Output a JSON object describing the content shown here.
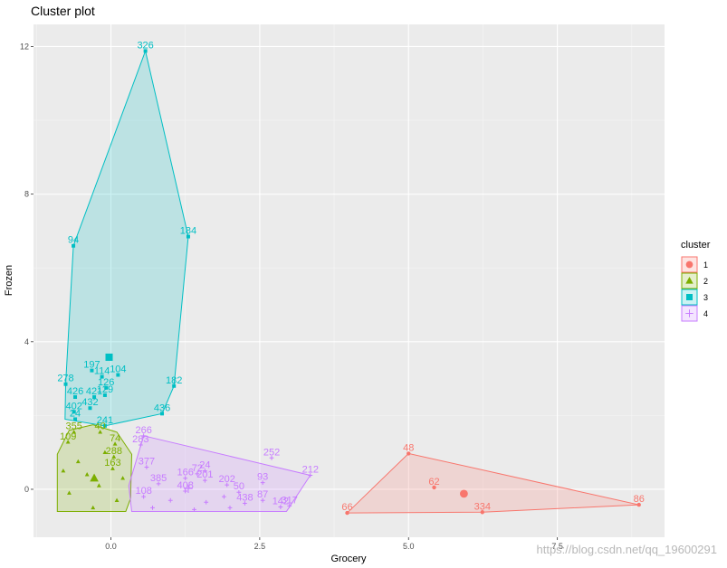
{
  "chart_data": {
    "type": "scatter",
    "title": "Cluster plot",
    "xlabel": "Grocery",
    "ylabel": "Frozen",
    "xlim": [
      -1.3,
      9.3
    ],
    "ylim": [
      -1.3,
      12.6
    ],
    "x_ticks": [
      {
        "value": 0.0,
        "label": "0.0"
      },
      {
        "value": 2.5,
        "label": "2.5"
      },
      {
        "value": 5.0,
        "label": "5.0"
      },
      {
        "value": 7.5,
        "label": "7.5"
      }
    ],
    "y_ticks": [
      {
        "value": 0,
        "label": "0"
      },
      {
        "value": 4,
        "label": "4"
      },
      {
        "value": 8,
        "label": "8"
      },
      {
        "value": 12,
        "label": "12"
      }
    ],
    "legend": {
      "title": "cluster",
      "position": "right",
      "entries": [
        {
          "label": "1",
          "color": "#F8766D",
          "shape": "circle"
        },
        {
          "label": "2",
          "color": "#7CAE00",
          "shape": "triangle"
        },
        {
          "label": "3",
          "color": "#00BFC4",
          "shape": "square"
        },
        {
          "label": "4",
          "color": "#C77CFF",
          "shape": "plus"
        }
      ]
    },
    "clusters": [
      {
        "id": "1",
        "color": "#F8766D",
        "shape": "circle",
        "hull": [
          [
            3.97,
            -0.64
          ],
          [
            5.0,
            0.97
          ],
          [
            8.87,
            -0.42
          ],
          [
            6.24,
            -0.62
          ]
        ],
        "center": [
          5.93,
          -0.12
        ],
        "points": [
          {
            "x": 5.0,
            "y": 0.97,
            "label": "48"
          },
          {
            "x": 5.43,
            "y": 0.05,
            "label": "62"
          },
          {
            "x": 3.97,
            "y": -0.64,
            "label": "66"
          },
          {
            "x": 6.24,
            "y": -0.62,
            "label": "334"
          },
          {
            "x": 8.87,
            "y": -0.42,
            "label": "86"
          }
        ]
      },
      {
        "id": "2",
        "color": "#7CAE00",
        "shape": "triangle",
        "hull": [
          [
            -0.9,
            -0.6
          ],
          [
            -0.9,
            0.95
          ],
          [
            -0.7,
            1.6
          ],
          [
            -0.3,
            1.75
          ],
          [
            0.1,
            1.55
          ],
          [
            0.35,
            0.95
          ],
          [
            0.33,
            -0.25
          ],
          [
            0.25,
            -0.6
          ]
        ],
        "center": [
          -0.28,
          0.3
        ],
        "points": [
          {
            "x": -0.62,
            "y": 1.55,
            "label": "355"
          },
          {
            "x": -0.72,
            "y": 1.28,
            "label": "109"
          },
          {
            "x": -0.18,
            "y": 1.55,
            "label": "40"
          },
          {
            "x": 0.07,
            "y": 1.23,
            "label": "74"
          },
          {
            "x": 0.05,
            "y": 0.88,
            "label": "288"
          },
          {
            "x": 0.03,
            "y": 0.56,
            "label": "163"
          },
          {
            "x": -0.55,
            "y": 0.75
          },
          {
            "x": -0.4,
            "y": 0.4
          },
          {
            "x": -0.2,
            "y": 0.1
          },
          {
            "x": -0.7,
            "y": -0.1
          },
          {
            "x": 0.1,
            "y": -0.3
          },
          {
            "x": -0.3,
            "y": -0.5
          },
          {
            "x": -0.8,
            "y": 0.5
          },
          {
            "x": -0.1,
            "y": 1.0
          },
          {
            "x": 0.2,
            "y": 0.3
          }
        ]
      },
      {
        "id": "3",
        "color": "#00BFC4",
        "shape": "square",
        "hull": [
          [
            0.58,
            11.88
          ],
          [
            1.3,
            6.85
          ],
          [
            1.06,
            2.8
          ],
          [
            0.86,
            2.05
          ],
          [
            -0.1,
            1.72
          ],
          [
            -0.77,
            1.9
          ],
          [
            -0.76,
            2.85
          ],
          [
            -0.63,
            6.6
          ]
        ],
        "center": [
          -0.03,
          3.58
        ],
        "points": [
          {
            "x": 0.58,
            "y": 11.88,
            "label": "326"
          },
          {
            "x": -0.63,
            "y": 6.6,
            "label": "94"
          },
          {
            "x": 1.3,
            "y": 6.85,
            "label": "184"
          },
          {
            "x": -0.76,
            "y": 2.85,
            "label": "278"
          },
          {
            "x": -0.32,
            "y": 3.22,
            "label": "197"
          },
          {
            "x": -0.15,
            "y": 3.05,
            "label": "114"
          },
          {
            "x": 0.12,
            "y": 3.1,
            "label": "104"
          },
          {
            "x": -0.08,
            "y": 2.75,
            "label": "126"
          },
          {
            "x": -0.6,
            "y": 2.5,
            "label": "426"
          },
          {
            "x": -0.28,
            "y": 2.5,
            "label": "421"
          },
          {
            "x": -0.1,
            "y": 2.55,
            "label": "129"
          },
          {
            "x": -0.35,
            "y": 2.2,
            "label": "432"
          },
          {
            "x": -0.62,
            "y": 2.1,
            "label": "402"
          },
          {
            "x": 1.06,
            "y": 2.8,
            "label": "182"
          },
          {
            "x": 0.86,
            "y": 2.05,
            "label": "436"
          },
          {
            "x": -0.1,
            "y": 1.72,
            "label": "241"
          },
          {
            "x": -0.6,
            "y": 1.9,
            "label": "24"
          }
        ]
      },
      {
        "id": "4",
        "color": "#C77CFF",
        "shape": "plus",
        "hull": [
          [
            0.55,
            1.45
          ],
          [
            3.35,
            0.38
          ],
          [
            2.95,
            -0.6
          ],
          [
            0.35,
            -0.6
          ],
          [
            0.3,
            0.1
          ]
        ],
        "center": [
          1.3,
          0.02
        ],
        "points": [
          {
            "x": 0.55,
            "y": 1.45,
            "label": "266"
          },
          {
            "x": 0.5,
            "y": 1.2,
            "label": "283"
          },
          {
            "x": 2.7,
            "y": 0.85,
            "label": "252"
          },
          {
            "x": 3.35,
            "y": 0.38,
            "label": "212"
          },
          {
            "x": 0.6,
            "y": 0.6,
            "label": "377"
          },
          {
            "x": 1.45,
            "y": 0.42,
            "label": "72"
          },
          {
            "x": 1.58,
            "y": 0.5,
            "label": "24"
          },
          {
            "x": 1.25,
            "y": 0.3,
            "label": "166"
          },
          {
            "x": 1.58,
            "y": 0.24,
            "label": "201"
          },
          {
            "x": 0.8,
            "y": 0.15,
            "label": "385"
          },
          {
            "x": 1.25,
            "y": -0.05,
            "label": "408"
          },
          {
            "x": 1.95,
            "y": 0.12,
            "label": "202"
          },
          {
            "x": 2.55,
            "y": 0.18,
            "label": "93"
          },
          {
            "x": 2.15,
            "y": -0.08,
            "label": "50"
          },
          {
            "x": 2.55,
            "y": -0.3,
            "label": "87"
          },
          {
            "x": 2.25,
            "y": -0.38,
            "label": "438"
          },
          {
            "x": 2.85,
            "y": -0.48,
            "label": "142"
          },
          {
            "x": 3.0,
            "y": -0.45,
            "label": "317"
          },
          {
            "x": 0.55,
            "y": -0.2,
            "label": "108"
          },
          {
            "x": 1.0,
            "y": -0.3
          },
          {
            "x": 1.6,
            "y": -0.35
          },
          {
            "x": 1.9,
            "y": -0.2
          },
          {
            "x": 0.7,
            "y": -0.5
          },
          {
            "x": 1.4,
            "y": -0.55
          },
          {
            "x": 2.0,
            "y": -0.5
          }
        ]
      }
    ]
  },
  "watermark": "https://blog.csdn.net/qq_19600291"
}
